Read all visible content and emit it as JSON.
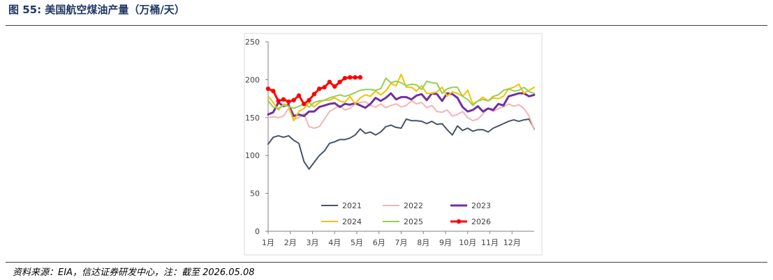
{
  "figure": {
    "title": "图 55:  美国航空煤油产量（万桶/天）",
    "source": "资料来源：EIA，信达证券研发中心，注：截至 2026.05.08"
  },
  "chart_data": {
    "type": "line",
    "title": "",
    "xlabel": "",
    "ylabel": "",
    "ylim": [
      0,
      250
    ],
    "yticks": [
      0,
      50,
      100,
      150,
      200,
      250
    ],
    "xlim": [
      1,
      53
    ],
    "categories": [
      "1月",
      "2月",
      "3月",
      "4月",
      "5月",
      "6月",
      "7月",
      "8月",
      "9月",
      "10月",
      "11月",
      "12月"
    ],
    "grid": false,
    "legend": "bottom-inside",
    "x_unit": "week of year",
    "series": [
      {
        "name": "2021",
        "color": "#44546a",
        "width": 2,
        "marker": false,
        "x": [
          1,
          2,
          3,
          4,
          5,
          6,
          7,
          8,
          9,
          10,
          11,
          12,
          13,
          14,
          15,
          16,
          17,
          18,
          19,
          20,
          21,
          22,
          23,
          24,
          25,
          26,
          27,
          28,
          29,
          30,
          31,
          32,
          33,
          34,
          35,
          36,
          37,
          38,
          39,
          40,
          41,
          42,
          43,
          44,
          45,
          46,
          47,
          48,
          49,
          50,
          51,
          52,
          53
        ],
        "values": [
          115,
          124,
          126,
          124,
          126,
          120,
          116,
          92,
          82,
          91,
          100,
          106,
          116,
          118,
          121,
          121,
          123,
          127,
          135,
          129,
          131,
          127,
          131,
          138,
          140,
          137,
          136,
          148,
          146,
          146,
          145,
          142,
          145,
          141,
          142,
          134,
          127,
          139,
          133,
          136,
          132,
          134,
          134,
          131,
          136,
          139,
          142,
          145,
          147,
          145,
          147,
          148,
          135
        ]
      },
      {
        "name": "2022",
        "color": "#f4b4b4",
        "width": 2,
        "marker": false,
        "x": [
          1,
          2,
          3,
          4,
          5,
          6,
          7,
          8,
          9,
          10,
          11,
          12,
          13,
          14,
          15,
          16,
          17,
          18,
          19,
          20,
          21,
          22,
          23,
          24,
          25,
          26,
          27,
          28,
          29,
          30,
          31,
          32,
          33,
          34,
          35,
          36,
          37,
          38,
          39,
          40,
          41,
          42,
          43,
          44,
          45,
          46,
          47,
          48,
          49,
          50,
          51,
          52,
          53
        ],
        "values": [
          150,
          151,
          150,
          152,
          162,
          148,
          150,
          155,
          138,
          136,
          138,
          148,
          158,
          162,
          166,
          160,
          162,
          168,
          170,
          171,
          166,
          164,
          168,
          163,
          166,
          168,
          164,
          166,
          172,
          168,
          170,
          163,
          166,
          158,
          157,
          160,
          152,
          154,
          158,
          150,
          146,
          148,
          155,
          162,
          158,
          162,
          164,
          168,
          165,
          167,
          162,
          152,
          134
        ]
      },
      {
        "name": "2023",
        "color": "#7030a0",
        "width": 3,
        "marker": false,
        "x": [
          1,
          2,
          3,
          4,
          5,
          6,
          7,
          8,
          9,
          10,
          11,
          12,
          13,
          14,
          15,
          16,
          17,
          18,
          19,
          20,
          21,
          22,
          23,
          24,
          25,
          26,
          27,
          28,
          29,
          30,
          31,
          32,
          33,
          34,
          35,
          36,
          37,
          38,
          39,
          40,
          41,
          42,
          43,
          44,
          45,
          46,
          47,
          48,
          49,
          50,
          51,
          52,
          53
        ],
        "values": [
          154,
          157,
          170,
          165,
          167,
          152,
          154,
          152,
          158,
          158,
          164,
          166,
          168,
          169,
          164,
          168,
          167,
          169,
          166,
          163,
          168,
          176,
          172,
          176,
          182,
          174,
          177,
          177,
          174,
          179,
          181,
          173,
          182,
          181,
          172,
          182,
          181,
          176,
          164,
          158,
          160,
          165,
          158,
          162,
          160,
          168,
          166,
          178,
          180,
          182,
          182,
          178,
          180
        ]
      },
      {
        "name": "2024",
        "color": "#f5c000",
        "width": 2,
        "marker": false,
        "x": [
          1,
          2,
          3,
          4,
          5,
          6,
          7,
          8,
          9,
          10,
          11,
          12,
          13,
          14,
          15,
          16,
          17,
          18,
          19,
          20,
          21,
          22,
          23,
          24,
          25,
          26,
          27,
          28,
          29,
          30,
          31,
          32,
          33,
          34,
          35,
          36,
          37,
          38,
          39,
          40,
          41,
          42,
          43,
          44,
          45,
          46,
          47,
          48,
          49,
          50,
          51,
          52,
          53
        ],
        "values": [
          178,
          170,
          160,
          168,
          165,
          146,
          158,
          162,
          170,
          164,
          170,
          173,
          173,
          176,
          172,
          170,
          178,
          168,
          176,
          180,
          178,
          185,
          180,
          185,
          195,
          192,
          207,
          190,
          190,
          185,
          192,
          182,
          182,
          184,
          190,
          178,
          184,
          182,
          178,
          186,
          168,
          172,
          177,
          172,
          176,
          175,
          178,
          188,
          190,
          194,
          182,
          186,
          190
        ]
      },
      {
        "name": "2025",
        "color": "#92d050",
        "width": 2,
        "marker": false,
        "x": [
          1,
          2,
          3,
          4,
          5,
          6,
          7,
          8,
          9,
          10,
          11,
          12,
          13,
          14,
          15,
          16,
          17,
          18,
          19,
          20,
          21,
          22,
          23,
          24,
          25,
          26,
          27,
          28,
          29,
          30,
          31,
          32,
          33,
          34,
          35,
          36,
          37,
          38,
          39,
          40,
          41,
          42,
          43,
          44,
          45,
          46,
          47,
          48,
          49,
          50,
          51,
          52,
          53
        ],
        "values": [
          172,
          164,
          162,
          166,
          165,
          162,
          165,
          168,
          164,
          170,
          172,
          173,
          176,
          178,
          180,
          178,
          180,
          183,
          186,
          187,
          187,
          186,
          188,
          202,
          196,
          198,
          196,
          192,
          194,
          193,
          187,
          198,
          196,
          195,
          182,
          188,
          190,
          190,
          178,
          174,
          166,
          172,
          174,
          172,
          178,
          180,
          186,
          188,
          185,
          186,
          190,
          184,
          182
        ]
      },
      {
        "name": "2026",
        "color": "#ff0000",
        "width": 3,
        "marker": true,
        "x": [
          1,
          2,
          3,
          4,
          5,
          6,
          7,
          8,
          9,
          10,
          11,
          12,
          13,
          14,
          15,
          16,
          17,
          18,
          19
        ],
        "values": [
          188,
          185,
          172,
          174,
          171,
          173,
          179,
          168,
          173,
          181,
          188,
          190,
          197,
          191,
          197,
          202,
          203,
          203,
          203
        ]
      }
    ]
  }
}
